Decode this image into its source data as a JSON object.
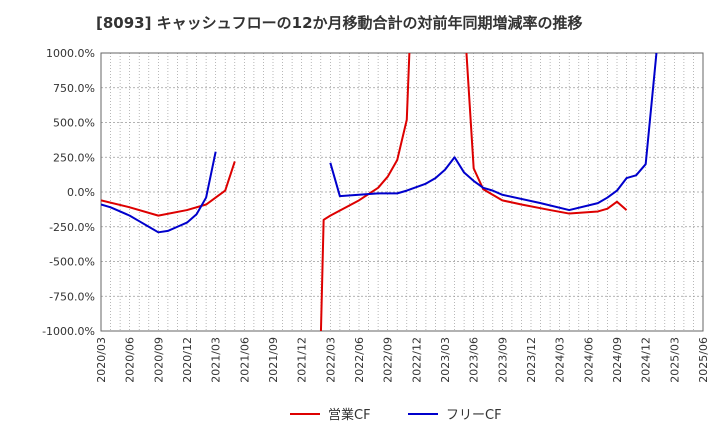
{
  "chart_data": {
    "type": "line",
    "title": "[8093]  キャッシュフローの12か月移動合計の対前年同期増減率の推移",
    "xlabel": "",
    "ylabel": "",
    "ylim": [
      -1000,
      1000
    ],
    "yticks": [
      1000,
      750,
      500,
      250,
      0,
      -250,
      -500,
      -750,
      -1000
    ],
    "ytick_labels": [
      "1000.0%",
      "750.0%",
      "500.0%",
      "250.0%",
      "0.0%",
      "-250.0%",
      "-500.0%",
      "-750.0%",
      "-1000.0%"
    ],
    "xticks": [
      "2020/03",
      "2020/06",
      "2020/09",
      "2020/12",
      "2021/03",
      "2021/06",
      "2021/09",
      "2021/12",
      "2022/03",
      "2022/06",
      "2022/09",
      "2022/12",
      "2023/03",
      "2023/06",
      "2023/09",
      "2023/12",
      "2024/03",
      "2024/06",
      "2024/09",
      "2024/12",
      "2025/03",
      "2025/06"
    ],
    "legend": [
      "営業CF",
      "フリーCF"
    ],
    "legend_position": "bottom",
    "grid": true,
    "series": [
      {
        "name": "営業CF",
        "color": "#dd0000",
        "points": [
          [
            0,
            -60
          ],
          [
            3,
            -110
          ],
          [
            6,
            -170
          ],
          [
            9,
            -130
          ],
          [
            11,
            -90
          ],
          [
            13,
            10
          ],
          [
            14,
            220
          ],
          null,
          [
            23,
            -1050
          ],
          [
            23.3,
            -200
          ],
          [
            24,
            -170
          ],
          [
            27,
            -60
          ],
          [
            29,
            30
          ],
          [
            30,
            110
          ],
          [
            31,
            230
          ],
          [
            32,
            520
          ],
          [
            32.3,
            1050
          ],
          null,
          [
            38.2,
            1050
          ],
          [
            39,
            170
          ],
          [
            40,
            20
          ],
          [
            42,
            -60
          ],
          [
            44,
            -90
          ],
          [
            47,
            -130
          ],
          [
            49,
            -155
          ],
          [
            52,
            -140
          ],
          [
            53,
            -120
          ],
          [
            54,
            -70
          ],
          [
            55,
            -130
          ]
        ]
      },
      {
        "name": "フリーCF",
        "color": "#0000cc",
        "points": [
          [
            0,
            -90
          ],
          [
            1,
            -110
          ],
          [
            2,
            -140
          ],
          [
            3,
            -170
          ],
          [
            4,
            -210
          ],
          [
            5,
            -250
          ],
          [
            6,
            -290
          ],
          [
            7,
            -280
          ],
          [
            8,
            -250
          ],
          [
            9,
            -220
          ],
          [
            10,
            -160
          ],
          [
            11,
            -40
          ],
          [
            12,
            290
          ],
          null,
          [
            24,
            210
          ],
          [
            25,
            -30
          ],
          [
            29,
            -10
          ],
          [
            31,
            -10
          ],
          [
            32,
            10
          ],
          [
            34,
            60
          ],
          [
            35,
            100
          ],
          [
            36,
            160
          ],
          [
            37,
            250
          ],
          [
            38,
            140
          ],
          [
            39,
            80
          ],
          [
            40,
            30
          ],
          [
            41,
            10
          ],
          [
            42,
            -20
          ],
          [
            46,
            -80
          ],
          [
            49,
            -130
          ],
          [
            52,
            -80
          ],
          [
            53,
            -40
          ],
          [
            54,
            10
          ],
          [
            55,
            100
          ],
          [
            56,
            120
          ],
          [
            57,
            200
          ],
          [
            58.2,
            1050
          ]
        ]
      }
    ]
  }
}
